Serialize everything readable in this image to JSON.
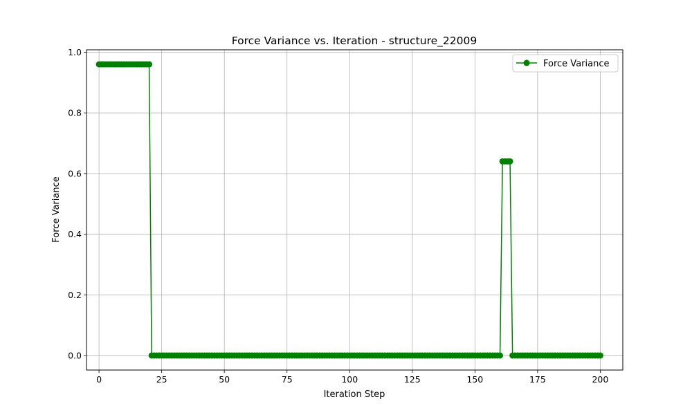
{
  "chart_data": {
    "type": "line",
    "title": "Force Variance vs. Iteration - structure_22009",
    "xlabel": "Iteration Step",
    "ylabel": "Force Variance",
    "xlim": [
      -5,
      209
    ],
    "ylim": [
      -0.048,
      1.008
    ],
    "xticks": [
      0,
      25,
      50,
      75,
      100,
      125,
      150,
      175,
      200
    ],
    "yticks": [
      0.0,
      0.2,
      0.4,
      0.6,
      0.8,
      1.0
    ],
    "xtick_labels": [
      "0",
      "25",
      "50",
      "75",
      "100",
      "125",
      "150",
      "175",
      "200"
    ],
    "ytick_labels": [
      "0.0",
      "0.2",
      "0.4",
      "0.6",
      "0.8",
      "1.0"
    ],
    "grid": true,
    "legend_position": "top-right",
    "series": [
      {
        "name": "Force Variance",
        "color": "#008000",
        "marker": "circle",
        "segments": [
          {
            "x_start": 0,
            "x_end": 20,
            "value": 0.96
          },
          {
            "x_start": 21,
            "x_end": 160,
            "value": 0.0
          },
          {
            "x_start": 161,
            "x_end": 164,
            "value": 0.64
          },
          {
            "x_start": 165,
            "x_end": 200,
            "value": 0.0
          }
        ]
      }
    ]
  }
}
